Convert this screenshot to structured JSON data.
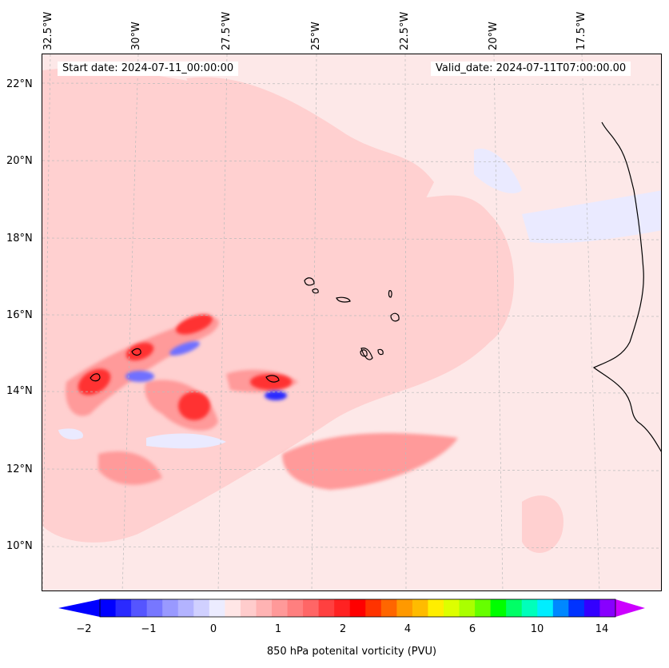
{
  "map": {
    "title_start": "Start date: 2024-07-11_00:00:00",
    "title_valid": "Valid_date: 2024-07-11T07:00:00.00",
    "lon_ticks": [
      "32.5°W",
      "30°W",
      "27.5°W",
      "25°W",
      "22.5°W",
      "20°W",
      "17.5°W"
    ],
    "lat_ticks": [
      "22°N",
      "20°N",
      "18°N",
      "16°N",
      "14°N",
      "12°N",
      "10°N"
    ],
    "field": "850 hPa potential vorticity"
  },
  "colorbar": {
    "label": "850 hPa potenital vorticity (PVU)",
    "ticks": [
      "−2",
      "−1",
      "0",
      "1",
      "2",
      "4",
      "6",
      "10",
      "14"
    ],
    "colors": [
      "#0000ff",
      "#2a2aff",
      "#5555ff",
      "#7777ff",
      "#9999ff",
      "#b3b3ff",
      "#d0d0ff",
      "#ececff",
      "#ffe6e6",
      "#ffcccc",
      "#ffb3b3",
      "#ff9999",
      "#ff7f7f",
      "#ff6666",
      "#ff4040",
      "#ff2222",
      "#ff0000",
      "#ff3300",
      "#ff6600",
      "#ff9900",
      "#ffbb00",
      "#ffee00",
      "#ddff00",
      "#aaff00",
      "#66ff00",
      "#00ff00",
      "#00ff66",
      "#00ffbb",
      "#00eeff",
      "#0088ff",
      "#0033ff",
      "#3300ff",
      "#8800ff"
    ],
    "under_color": "#0000ff",
    "over_color": "#cc00ff"
  }
}
